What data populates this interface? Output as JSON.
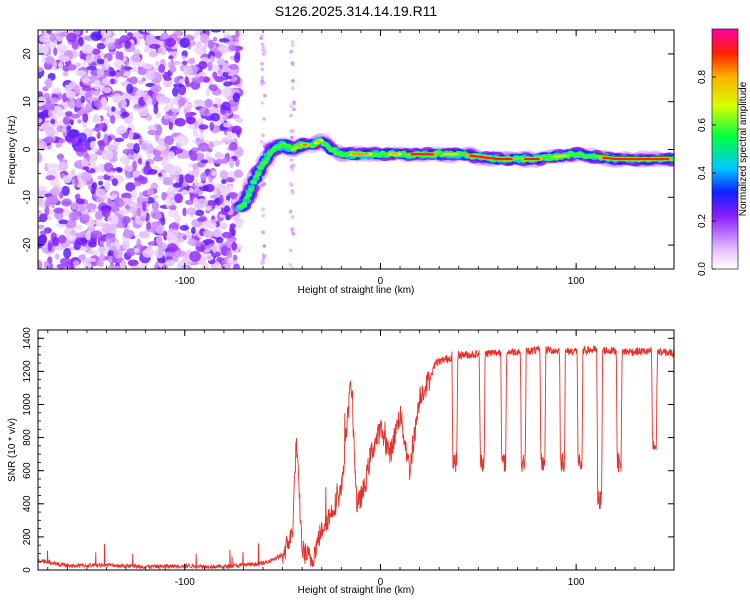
{
  "title": "S126.2025.314.14.19.R11",
  "chart_data": [
    {
      "type": "heatmap",
      "xlabel": "Height of straight line (km)",
      "ylabel": "Frequency (Hz)",
      "xlim": [
        -175,
        150
      ],
      "ylim": [
        -25,
        25
      ],
      "xticks": [
        -100,
        0,
        100
      ],
      "yticks": [
        -20,
        -10,
        0,
        10,
        20
      ],
      "colorbar": {
        "label": "Normalized spectral amplitude",
        "range": [
          0,
          1
        ],
        "ticks": [
          0.0,
          0.2,
          0.4,
          0.6,
          0.8
        ]
      },
      "ridge_frequency": [
        {
          "x": -70,
          "y": -12
        },
        {
          "x": -65,
          "y": -7
        },
        {
          "x": -60,
          "y": -3
        },
        {
          "x": -55,
          "y": 0
        },
        {
          "x": -50,
          "y": 1
        },
        {
          "x": -45,
          "y": 0
        },
        {
          "x": -40,
          "y": 1
        },
        {
          "x": -35,
          "y": 1
        },
        {
          "x": -30,
          "y": 2
        },
        {
          "x": -25,
          "y": 0
        },
        {
          "x": -20,
          "y": -1
        },
        {
          "x": -10,
          "y": -1
        },
        {
          "x": 0,
          "y": -1
        },
        {
          "x": 20,
          "y": -1
        },
        {
          "x": 40,
          "y": -1
        },
        {
          "x": 60,
          "y": -2
        },
        {
          "x": 80,
          "y": -2
        },
        {
          "x": 100,
          "y": -1
        },
        {
          "x": 120,
          "y": -2
        },
        {
          "x": 148,
          "y": -2
        }
      ]
    },
    {
      "type": "line",
      "xlabel": "Height of straight line (km)",
      "ylabel": "SNR (10 * v/v)",
      "xlim": [
        -175,
        150
      ],
      "ylim": [
        0,
        1450
      ],
      "xticks": [
        -100,
        0,
        100
      ],
      "yticks": [
        0,
        200,
        400,
        600,
        800,
        1000,
        1200,
        1400
      ],
      "series": [
        {
          "name": "SNR",
          "color": "#e8302a",
          "points": [
            {
              "x": -175,
              "y": 60
            },
            {
              "x": -160,
              "y": 25
            },
            {
              "x": -140,
              "y": 30
            },
            {
              "x": -120,
              "y": 20
            },
            {
              "x": -100,
              "y": 25
            },
            {
              "x": -80,
              "y": 20
            },
            {
              "x": -60,
              "y": 40
            },
            {
              "x": -50,
              "y": 90
            },
            {
              "x": -45,
              "y": 220
            },
            {
              "x": -43,
              "y": 780
            },
            {
              "x": -40,
              "y": 120
            },
            {
              "x": -35,
              "y": 60
            },
            {
              "x": -30,
              "y": 250
            },
            {
              "x": -25,
              "y": 350
            },
            {
              "x": -20,
              "y": 480
            },
            {
              "x": -15,
              "y": 1150
            },
            {
              "x": -12,
              "y": 380
            },
            {
              "x": -8,
              "y": 500
            },
            {
              "x": -5,
              "y": 700
            },
            {
              "x": 0,
              "y": 850
            },
            {
              "x": 5,
              "y": 700
            },
            {
              "x": 10,
              "y": 950
            },
            {
              "x": 15,
              "y": 600
            },
            {
              "x": 20,
              "y": 1050
            },
            {
              "x": 25,
              "y": 1150
            },
            {
              "x": 28,
              "y": 1250
            },
            {
              "x": 35,
              "y": 1280
            },
            {
              "x": 40,
              "y": 1300
            },
            {
              "x": 45,
              "y": 1300
            },
            {
              "x": 55,
              "y": 1310
            },
            {
              "x": 70,
              "y": 1320
            },
            {
              "x": 85,
              "y": 1330
            },
            {
              "x": 95,
              "y": 1320
            },
            {
              "x": 110,
              "y": 1330
            },
            {
              "x": 125,
              "y": 1320
            },
            {
              "x": 140,
              "y": 1320
            },
            {
              "x": 150,
              "y": 1310
            }
          ],
          "dropouts": [
            {
              "x": 38,
              "y": 650
            },
            {
              "x": 52,
              "y": 650
            },
            {
              "x": 63,
              "y": 650
            },
            {
              "x": 73,
              "y": 650
            },
            {
              "x": 83,
              "y": 650
            },
            {
              "x": 93,
              "y": 650
            },
            {
              "x": 102,
              "y": 650
            },
            {
              "x": 112,
              "y": 420
            },
            {
              "x": 122,
              "y": 650
            },
            {
              "x": 140,
              "y": 750
            }
          ]
        }
      ]
    }
  ]
}
